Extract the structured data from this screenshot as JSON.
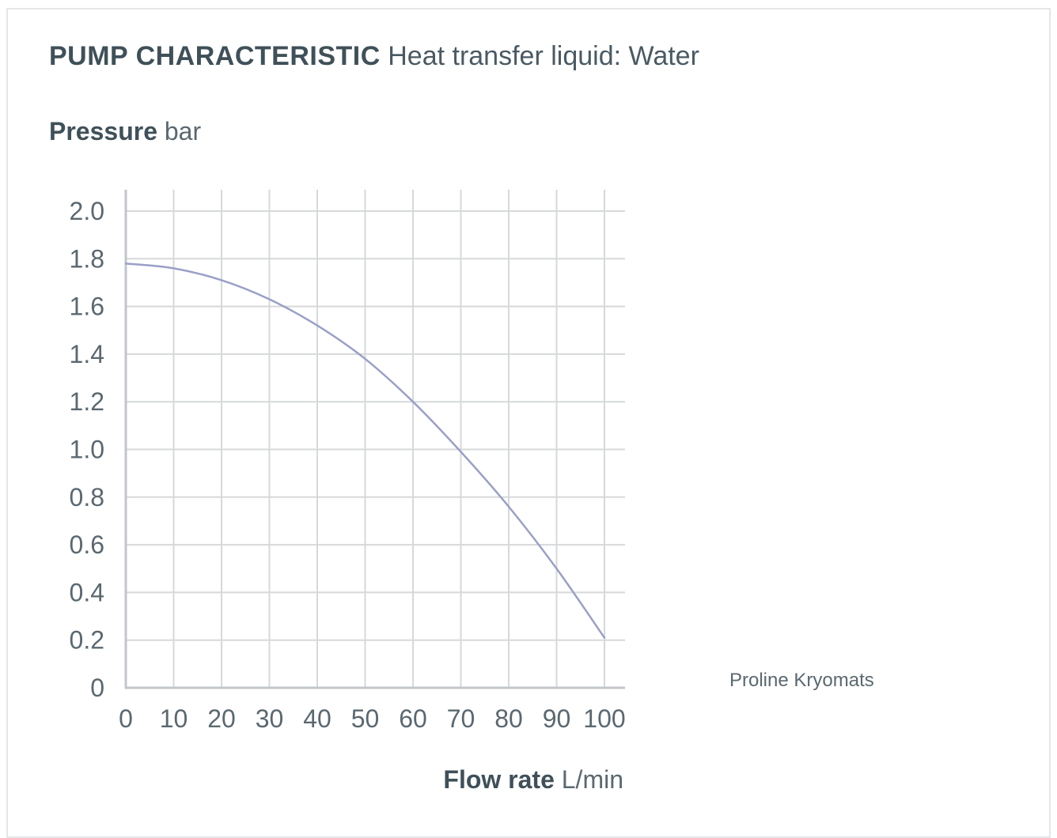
{
  "header": {
    "title_bold": "PUMP CHARACTERISTIC",
    "title_rest": "Heat transfer liquid: Water"
  },
  "axes": {
    "y_label_bold": "Pressure",
    "y_label_unit": "bar",
    "x_label_bold": "Flow rate",
    "x_label_unit": "L/min"
  },
  "legend": {
    "label": "Proline Kryomats"
  },
  "colors": {
    "curve": "#9aa0c6",
    "grid": "#d6d8da",
    "axis": "#c2c6ca",
    "text": "#3f5059"
  },
  "chart_data": {
    "type": "line",
    "xlim": [
      0,
      100
    ],
    "ylim": [
      0,
      2.0
    ],
    "x_ticks": [
      "0",
      "10",
      "20",
      "30",
      "40",
      "50",
      "60",
      "70",
      "80",
      "90",
      "100"
    ],
    "y_ticks": [
      "0",
      "0.2",
      "0.4",
      "0.6",
      "0.8",
      "1.0",
      "1.2",
      "1.4",
      "1.6",
      "1.8",
      "2.0"
    ],
    "grid": true,
    "legend_position": "right",
    "series": [
      {
        "name": "Proline Kryomats",
        "x": [
          0,
          10,
          20,
          30,
          40,
          50,
          60,
          70,
          80,
          90,
          100
        ],
        "y": [
          1.78,
          1.76,
          1.71,
          1.63,
          1.52,
          1.38,
          1.2,
          0.99,
          0.76,
          0.5,
          0.21
        ]
      }
    ]
  }
}
